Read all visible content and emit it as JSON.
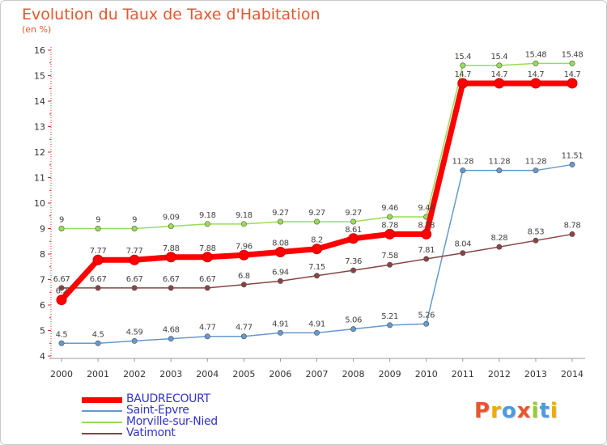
{
  "chart_data": {
    "type": "line",
    "title": "Evolution du Taux de Taxe d'Habitation",
    "ylabel": "(en %)",
    "x": [
      2000,
      2001,
      2002,
      2003,
      2004,
      2005,
      2006,
      2007,
      2008,
      2009,
      2010,
      2011,
      2012,
      2013,
      2014
    ],
    "ylim": [
      4,
      16
    ],
    "yticks": [
      4,
      5,
      6,
      7,
      8,
      9,
      10,
      11,
      12,
      13,
      14,
      15,
      16
    ],
    "grid": false,
    "legend_position": "bottom-left",
    "series": [
      {
        "name": "BAUDRECOURT",
        "color": "#ff0000",
        "values": [
          6.2,
          7.77,
          7.77,
          7.88,
          7.88,
          7.96,
          8.08,
          8.2,
          8.61,
          8.78,
          8.78,
          14.7,
          14.7,
          14.7,
          14.7
        ],
        "labels": [
          "6.2",
          "7.77",
          "7.77",
          "7.88",
          "7.88",
          "7.96",
          "8.08",
          "8.2",
          "8.61",
          "8.78",
          "8.78",
          "14.7",
          "14.7",
          "14.7",
          "14.7"
        ]
      },
      {
        "name": "Saint-Epvre",
        "color": "#6699cc",
        "values": [
          4.5,
          4.5,
          4.59,
          4.68,
          4.77,
          4.77,
          4.91,
          4.91,
          5.06,
          5.21,
          5.26,
          11.28,
          11.28,
          11.28,
          11.51
        ],
        "labels": [
          "4.5",
          "4.5",
          "4.59",
          "4.68",
          "4.77",
          "4.77",
          "4.91",
          "4.91",
          "5.06",
          "5.21",
          "5.26",
          "11.28",
          "11.28",
          "11.28",
          "11.51"
        ]
      },
      {
        "name": "Morville-sur-Nied",
        "color": "#99dd55",
        "values": [
          9,
          9,
          9,
          9.09,
          9.18,
          9.18,
          9.27,
          9.27,
          9.27,
          9.46,
          9.46,
          15.4,
          15.4,
          15.48,
          15.48
        ],
        "labels": [
          "9",
          "9",
          "9",
          "9.09",
          "9.18",
          "9.18",
          "9.27",
          "9.27",
          "9.27",
          "9.46",
          "9.46",
          "15.4",
          "15.4",
          "15.48",
          "15.48"
        ]
      },
      {
        "name": "Vatimont",
        "color": "#884444",
        "values": [
          6.67,
          6.67,
          6.67,
          6.67,
          6.67,
          6.8,
          6.94,
          7.15,
          7.36,
          7.58,
          7.81,
          8.04,
          8.28,
          8.53,
          8.78
        ],
        "labels": [
          "6.67",
          "6.67",
          "6.67",
          "6.67",
          "6.67",
          "6.8",
          "6.94",
          "7.15",
          "7.36",
          "7.58",
          "7.81",
          "8.04",
          "8.28",
          "8.53",
          "8.78"
        ]
      }
    ]
  },
  "logo_text": "Proxiti",
  "logo_colors": [
    "#e8552c",
    "#f2a900",
    "#4a9be0",
    "#e8552c",
    "#99cc33",
    "#4a9be0",
    "#f2a900"
  ]
}
